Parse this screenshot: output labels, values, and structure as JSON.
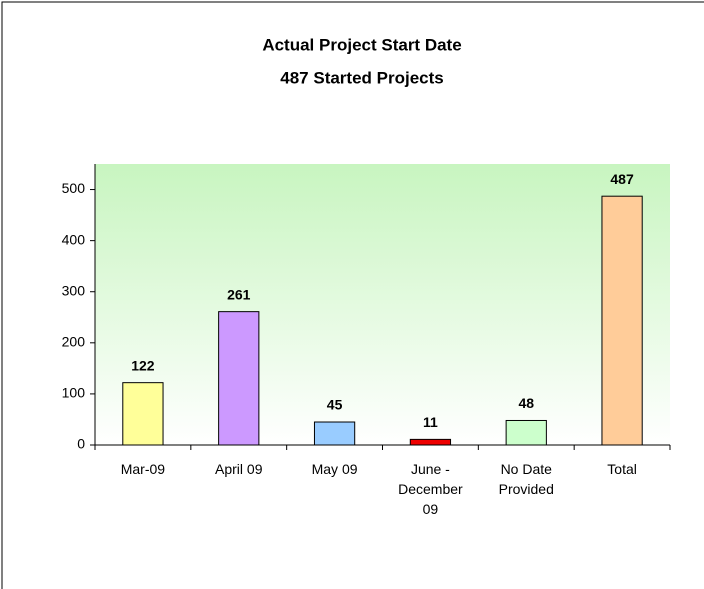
{
  "chart_data": {
    "type": "bar",
    "title": "Actual Project Start Date",
    "subtitle": "487 Started Projects",
    "categories": [
      "Mar-09",
      "April 09",
      "May 09",
      "June - December 09",
      "No Date Provided",
      "Total"
    ],
    "values": [
      122,
      261,
      45,
      11,
      48,
      487
    ],
    "colors": [
      "#ffff99",
      "#cc99ff",
      "#99ccff",
      "#ee0000",
      "#ccffcc",
      "#ffcc99"
    ],
    "ylim": [
      0,
      550
    ],
    "yticks": [
      0,
      100,
      200,
      300,
      400,
      500
    ],
    "grid": false
  }
}
